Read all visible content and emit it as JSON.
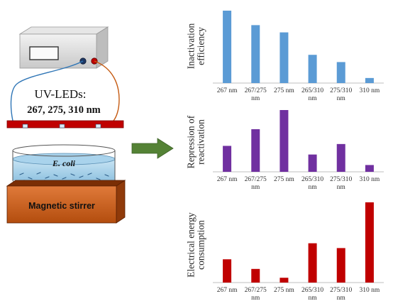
{
  "setup": {
    "uv_leds_label": "UV-LEDs:",
    "wavelengths_label": "267, 275, 310 nm",
    "bacteria_label": "E. coli",
    "stirrer_label": "Magnetic stirrer"
  },
  "colors": {
    "efficiency": "#5b9bd5",
    "repression": "#7030a0",
    "energy": "#c00000",
    "arrow": "#548235",
    "led_strip": "#c00000",
    "stirrer": "#c55a11"
  },
  "chart_data": [
    {
      "type": "bar",
      "ylabel": "Inactivation efficiency",
      "categories": [
        "267 nm",
        "267/275 nm",
        "275 nm",
        "265/310 nm",
        "275/310 nm",
        "310 nm"
      ],
      "values": [
        100,
        80,
        70,
        39,
        29,
        7
      ],
      "ylim": [
        0,
        100
      ],
      "grid": false,
      "color": "#5b9bd5"
    },
    {
      "type": "bar",
      "ylabel": "Repression of reactivation",
      "categories": [
        "267 nm",
        "267/275 nm",
        "275 nm",
        "265/310 nm",
        "275/310 nm",
        "310 nm"
      ],
      "values": [
        42,
        69,
        100,
        28,
        45,
        11
      ],
      "ylim": [
        0,
        100
      ],
      "grid": false,
      "color": "#7030a0"
    },
    {
      "type": "bar",
      "ylabel": "Electrical energy consumption",
      "categories": [
        "267 nm",
        "267/275 nm",
        "275 nm",
        "265/310 nm",
        "275/310 nm",
        "310 nm"
      ],
      "values": [
        29,
        17,
        6,
        49,
        43,
        100
      ],
      "ylim": [
        0,
        100
      ],
      "grid": false,
      "color": "#c00000"
    }
  ]
}
